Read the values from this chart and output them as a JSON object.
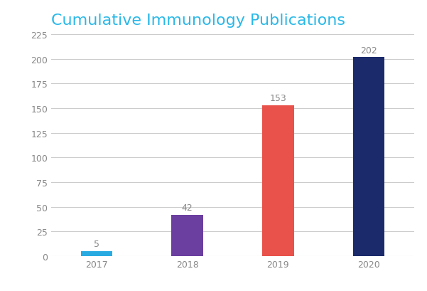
{
  "title": "Cumulative Immunology Publications",
  "title_color": "#29B8E8",
  "categories": [
    "2017",
    "2018",
    "2019",
    "2020"
  ],
  "values": [
    5,
    42,
    153,
    202
  ],
  "bar_colors": [
    "#29ABE2",
    "#6B3FA0",
    "#E8524A",
    "#1B2A6B"
  ],
  "ylim": [
    0,
    225
  ],
  "yticks": [
    0,
    25,
    50,
    75,
    100,
    125,
    150,
    175,
    200,
    225
  ],
  "label_fontsize": 9,
  "tick_fontsize": 9,
  "title_fontsize": 16,
  "background_color": "#FFFFFF",
  "grid_color": "#CCCCCC",
  "bar_label_color": "#888888",
  "bar_width": 0.35
}
